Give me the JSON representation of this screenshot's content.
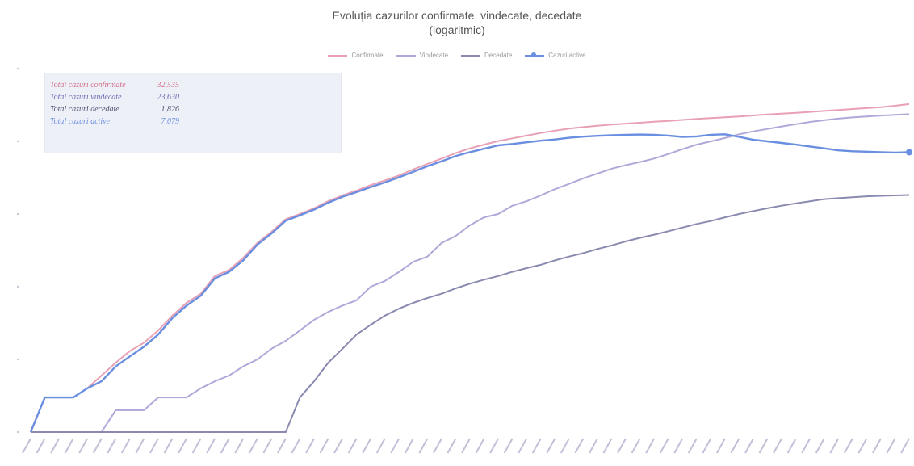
{
  "title_line1": "Evoluția cazurilor confirmate, vindecate, decedate",
  "title_line2": "(logaritmic)",
  "legend": [
    {
      "label": "Confirmate",
      "color": "#e8a0b4",
      "marker": false
    },
    {
      "label": "Vindecate",
      "color": "#b0a8d8",
      "marker": false
    },
    {
      "label": "Decedate",
      "color": "#8a8ab0",
      "marker": false
    },
    {
      "label": "Cazuri active",
      "color": "#6a8ee0",
      "marker": true
    }
  ],
  "totals": [
    {
      "label": "Total cazuri confirmate",
      "value": "32,535",
      "color": "#d0708a"
    },
    {
      "label": "Total cazuri vindecate",
      "value": "23,630",
      "color": "#6a6ab0"
    },
    {
      "label": "Total cazuri decedate",
      "value": "1,826",
      "color": "#505070"
    },
    {
      "label": "Total cazuri active",
      "value": "7,079",
      "color": "#6a8ee0"
    }
  ],
  "chart_data": {
    "type": "line",
    "title": "Evoluția cazurilor confirmate, vindecate, decedate (logaritmic)",
    "y_scale": "log",
    "ylim": [
      1,
      100000
    ],
    "x_count": 63,
    "series": [
      {
        "name": "Confirmate",
        "color": "#e8a0b4",
        "values": [
          1,
          3,
          3,
          3,
          4,
          6,
          9,
          13,
          17,
          25,
          40,
          60,
          80,
          140,
          170,
          250,
          400,
          570,
          850,
          1000,
          1200,
          1500,
          1800,
          2100,
          2500,
          2900,
          3400,
          4100,
          4900,
          5800,
          6900,
          8000,
          9000,
          10100,
          11000,
          12000,
          13000,
          14000,
          15000,
          15700,
          16400,
          17000,
          17500,
          18000,
          18600,
          19100,
          19700,
          20300,
          20900,
          21400,
          22000,
          22700,
          23400,
          24000,
          24700,
          25400,
          26200,
          27000,
          27800,
          28600,
          29400,
          30800,
          32535
        ]
      },
      {
        "name": "Vindecate",
        "color": "#b0a8d8",
        "values": [
          1,
          1,
          1,
          1,
          1,
          1,
          2,
          2,
          2,
          3,
          3,
          3,
          4,
          5,
          6,
          8,
          10,
          14,
          18,
          25,
          35,
          45,
          55,
          65,
          100,
          120,
          160,
          220,
          260,
          400,
          500,
          700,
          900,
          1000,
          1300,
          1500,
          1800,
          2200,
          2600,
          3100,
          3600,
          4200,
          4700,
          5200,
          5800,
          6700,
          7800,
          9000,
          10000,
          11100,
          12500,
          13700,
          14800,
          16000,
          17200,
          18500,
          19500,
          20500,
          21300,
          22000,
          22600,
          23100,
          23630
        ]
      },
      {
        "name": "Decedate",
        "color": "#8a8ab0",
        "values": [
          1,
          1,
          1,
          1,
          1,
          1,
          1,
          1,
          1,
          1,
          1,
          1,
          1,
          1,
          1,
          1,
          1,
          1,
          1,
          3,
          5,
          9,
          14,
          22,
          30,
          40,
          50,
          60,
          70,
          80,
          95,
          110,
          125,
          140,
          160,
          180,
          200,
          230,
          260,
          290,
          330,
          370,
          420,
          470,
          520,
          580,
          650,
          730,
          800,
          900,
          1000,
          1100,
          1200,
          1300,
          1400,
          1500,
          1600,
          1650,
          1700,
          1750,
          1780,
          1800,
          1826
        ]
      },
      {
        "name": "Cazuri active",
        "color": "#6a8ee0",
        "marker": "last",
        "values": [
          1,
          3,
          3,
          3,
          4,
          5,
          8,
          11,
          15,
          22,
          37,
          55,
          75,
          130,
          160,
          230,
          380,
          540,
          810,
          960,
          1150,
          1430,
          1720,
          2000,
          2350,
          2720,
          3200,
          3800,
          4550,
          5300,
          6300,
          7100,
          7900,
          8800,
          9200,
          9700,
          10200,
          10600,
          11200,
          11600,
          11900,
          12100,
          12300,
          12400,
          12300,
          12000,
          11500,
          11700,
          12300,
          12500,
          11500,
          10500,
          10000,
          9500,
          9000,
          8500,
          8000,
          7500,
          7300,
          7200,
          7100,
          7000,
          7079
        ]
      }
    ],
    "grid": false,
    "legend_position": "top-center"
  }
}
